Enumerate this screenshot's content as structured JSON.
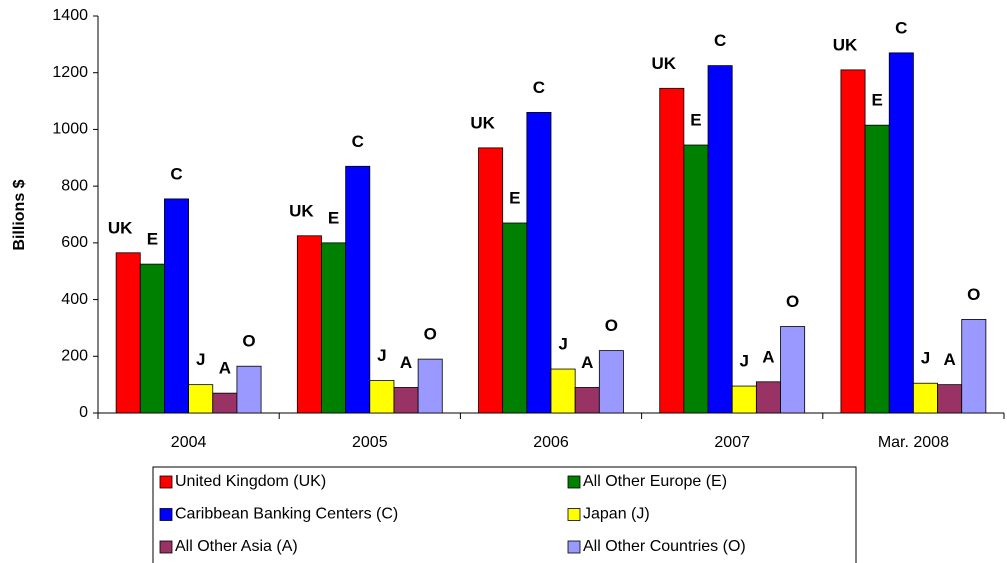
{
  "chart_data": {
    "type": "bar",
    "y_label": "Billions $",
    "categories": [
      "2004",
      "2005",
      "2006",
      "2007",
      "Mar. 2008"
    ],
    "series": [
      {
        "name": "United Kingdom (UK)",
        "label": "UK",
        "color": "#ff0000",
        "values": [
          565,
          625,
          935,
          1145,
          1210
        ]
      },
      {
        "name": "All Other Europe (E)",
        "label": "E",
        "color": "#008000",
        "values": [
          525,
          600,
          670,
          945,
          1015
        ]
      },
      {
        "name": "Caribbean Banking Centers (C)",
        "label": "C",
        "color": "#0000ff",
        "values": [
          755,
          870,
          1060,
          1225,
          1270
        ]
      },
      {
        "name": "Japan (J)",
        "label": "J",
        "color": "#ffff00",
        "values": [
          100,
          115,
          155,
          95,
          105
        ]
      },
      {
        "name": "All Other Asia (A)",
        "label": "A",
        "color": "#993366",
        "values": [
          70,
          90,
          90,
          110,
          100
        ]
      },
      {
        "name": "All Other Countries (O)",
        "label": "O",
        "color": "#9999ff",
        "values": [
          165,
          190,
          220,
          305,
          330
        ]
      }
    ],
    "ylim": [
      0,
      1400
    ],
    "yticks": [
      0,
      200,
      400,
      600,
      800,
      1000,
      1200,
      1400
    ],
    "grid": false,
    "legend": "bottom"
  }
}
